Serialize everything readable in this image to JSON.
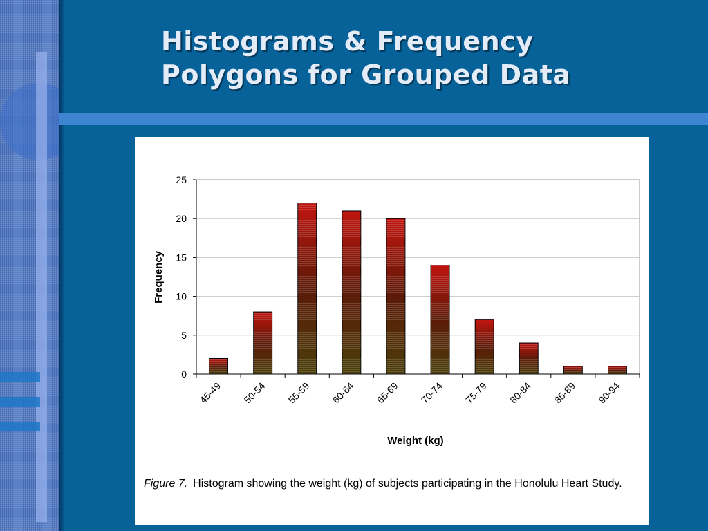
{
  "slide": {
    "title_line1": "Histograms & Frequency",
    "title_line2": "Polygons for Grouped Data"
  },
  "caption": {
    "label": "Figure 7.",
    "text": "Histogram showing the weight (kg) of subjects participating in the Honolulu Heart Study."
  },
  "colors": {
    "background": "#07629a",
    "sidebar": "#5a80c6",
    "band": "#3d85d1",
    "title_text": "#e4ecf8",
    "bar_top": "#c0150f",
    "bar_mid": "#5c1a08",
    "bar_bottom": "#4a3e0a"
  },
  "chart_data": {
    "type": "bar",
    "categories": [
      "45-49",
      "50-54",
      "55-59",
      "60-64",
      "65-69",
      "70-74",
      "75-79",
      "80-84",
      "85-89",
      "90-94"
    ],
    "values": [
      2,
      8,
      22,
      21,
      20,
      14,
      7,
      4,
      1,
      1
    ],
    "xlabel": "Weight (kg)",
    "ylabel": "Frequency",
    "ylim": [
      0,
      25
    ],
    "yticks": [
      0,
      5,
      10,
      15,
      20,
      25
    ],
    "grid": true,
    "legend": false
  }
}
